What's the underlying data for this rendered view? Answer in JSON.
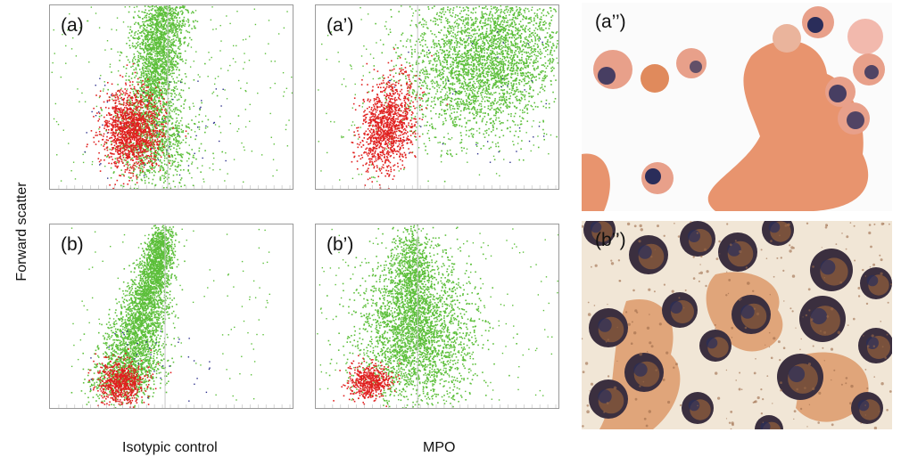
{
  "figure": {
    "y_axis_label": "Forward scatter",
    "x_axis_label_left": "Isotypic control",
    "x_axis_label_right": "MPO",
    "panels": {
      "a": "(a)",
      "a_prime": "(a’)",
      "a_dprime": "(a’’)",
      "b": "(b)",
      "b_prime": "(b’)",
      "b_dprime": "(b’’)"
    }
  },
  "colors": {
    "green_population": "#5cbf3a",
    "red_population": "#e0201f",
    "gate_line": "#c8c8c8",
    "stain_pink": "#e8a08a",
    "stain_dark": "#2a2d5a",
    "plot_border": "#9a9a9a"
  }
}
